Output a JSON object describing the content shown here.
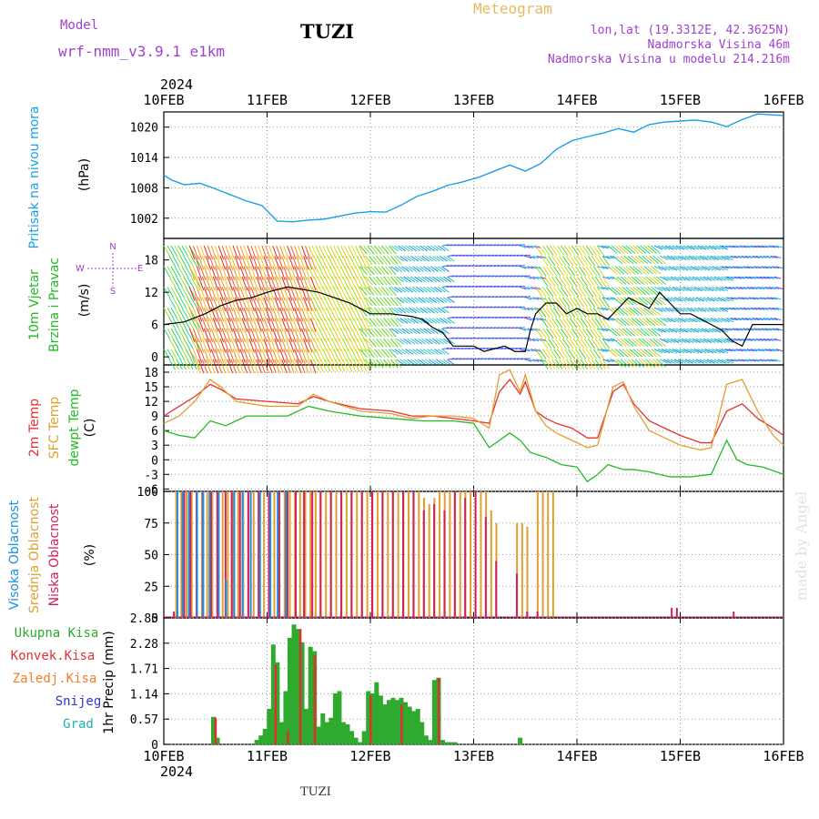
{
  "header": {
    "model_label": "Model",
    "model_name": "wrf-nmm_v3.9.1 e1km",
    "station": "TUZI",
    "title": "Meteogram",
    "lonlat": "lon,lat (19.3312E, 42.3625N)",
    "elevation": "Nadmorska Visina 46m",
    "model_elevation": "Nadmorska Visina u modelu 214.216m",
    "footer_station": "TUZI",
    "watermark": "made by Angel"
  },
  "colors": {
    "pressure": "#1aa0e6",
    "temp2m": "#e83030",
    "sfc": "#e0a030",
    "dew": "#22bb22",
    "high_cloud": "#2090e0",
    "mid_cloud": "#e0a030",
    "low_cloud": "#d02060",
    "total_precip": "#2eaa2e",
    "conv_precip": "#e03030",
    "frozen": "#f07d28",
    "snow": "#3333cc",
    "hail": "#20b0b0",
    "purple": "#a040d0"
  },
  "chart_data": [
    {
      "type": "line",
      "title": "Pritisak na nivou mora",
      "ylabel": "(hPa)",
      "x_tick_labels": [
        "10FEB",
        "11FEB",
        "12FEB",
        "13FEB",
        "14FEB",
        "15FEB",
        "16FEB"
      ],
      "year_label": "2024",
      "x_range_days": [
        0,
        6
      ],
      "yticks": [
        1002,
        1008,
        1014,
        1020
      ],
      "ylim": [
        998,
        1023
      ],
      "series": [
        {
          "values_x": [
            0,
            0.08,
            0.2,
            0.35,
            0.5,
            0.65,
            0.8,
            0.95,
            1.1,
            1.25,
            1.4,
            1.55,
            1.7,
            1.85,
            2.0,
            2.15,
            2.3,
            2.45,
            2.6,
            2.75,
            2.9,
            3.05,
            3.2,
            3.35,
            3.5,
            3.65,
            3.8,
            3.95,
            4.1,
            4.25,
            4.4,
            4.55,
            4.7,
            4.85,
            5.0,
            5.15,
            5.3,
            5.45,
            5.6,
            5.75,
            5.9,
            6.0
          ],
          "values": [
            1010.5,
            1009.5,
            1008.6,
            1008.9,
            1007.8,
            1006.6,
            1005.4,
            1004.5,
            1001.4,
            1001.3,
            1001.6,
            1001.8,
            1002.4,
            1003.0,
            1003.3,
            1003.2,
            1004.6,
            1006.3,
            1007.3,
            1008.5,
            1009.2,
            1010.1,
            1011.3,
            1012.5,
            1011.3,
            1012.8,
            1015.6,
            1017.3,
            1018.1,
            1018.8,
            1019.7,
            1019.0,
            1020.5,
            1021.0,
            1021.2,
            1021.4,
            1021.0,
            1020.1,
            1021.5,
            1022.6,
            1022.4,
            1022.3
          ]
        }
      ]
    },
    {
      "type": "line",
      "title": "10m Vjetar Brzina i Pravac",
      "ylabel": "(m/s)",
      "compass_top": "N",
      "compass_left": "W",
      "compass_right": "E",
      "compass_bottom": "S",
      "yticks": [
        0,
        6,
        12,
        18
      ],
      "ylim": [
        -1.5,
        22
      ],
      "series": [
        {
          "values_x": [
            0,
            0.2,
            0.4,
            0.55,
            0.7,
            0.85,
            1.0,
            1.1,
            1.2,
            1.35,
            1.5,
            1.65,
            1.8,
            2.0,
            2.2,
            2.4,
            2.5,
            2.6,
            2.7,
            2.8,
            2.9,
            3.0,
            3.1,
            3.2,
            3.3,
            3.4,
            3.5,
            3.55,
            3.6,
            3.7,
            3.8,
            3.9,
            4.0,
            4.1,
            4.2,
            4.3,
            4.4,
            4.5,
            4.6,
            4.7,
            4.8,
            4.9,
            5.0,
            5.1,
            5.2,
            5.3,
            5.4,
            5.5,
            5.6,
            5.7,
            5.8,
            5.9,
            6.0
          ],
          "values": [
            6,
            6.5,
            8,
            9.5,
            10.5,
            11,
            12,
            12.5,
            13,
            12.5,
            12,
            11,
            10,
            8,
            8,
            7.5,
            7,
            5.5,
            4.5,
            2,
            2,
            2,
            1,
            1.5,
            2,
            1,
            1,
            5,
            8,
            10,
            10,
            8,
            9,
            8,
            8,
            7,
            9,
            11,
            10,
            9,
            12,
            10,
            8,
            8,
            7,
            6,
            5,
            3,
            2,
            6,
            6,
            6,
            6
          ]
        }
      ]
    },
    {
      "type": "line",
      "title": "2m Temp / SFC Temp / dewpt Temp",
      "ylabel": "(C)",
      "yticks": [
        -6,
        -3,
        0,
        3,
        6,
        9,
        12,
        15,
        18
      ],
      "ylim": [
        -6.5,
        19.5
      ],
      "series": [
        {
          "name": "2m Temp",
          "values_x": [
            0,
            0.15,
            0.3,
            0.45,
            0.55,
            0.7,
            1.0,
            1.3,
            1.45,
            1.6,
            1.9,
            2.2,
            2.4,
            2.6,
            2.8,
            3.0,
            3.15,
            3.25,
            3.35,
            3.45,
            3.5,
            3.6,
            3.7,
            3.8,
            3.95,
            4.1,
            4.2,
            4.35,
            4.45,
            4.55,
            4.7,
            4.85,
            5.0,
            5.2,
            5.3,
            5.45,
            5.6,
            5.75,
            5.9,
            6.0
          ],
          "values": [
            9,
            11,
            13,
            15.5,
            14.5,
            12.5,
            12,
            11.5,
            13,
            12,
            10.5,
            10,
            9,
            9,
            8.5,
            8,
            7.5,
            14,
            16.5,
            13.5,
            16,
            10,
            8.5,
            7.5,
            6.5,
            4.5,
            4.5,
            14,
            15.5,
            11.5,
            8,
            6.5,
            5,
            3.5,
            3.5,
            10,
            11.5,
            8.5,
            6.5,
            5
          ]
        },
        {
          "name": "SFC Temp",
          "values_x": [
            0,
            0.15,
            0.3,
            0.45,
            0.55,
            0.7,
            1.0,
            1.3,
            1.45,
            1.6,
            1.9,
            2.2,
            2.4,
            2.6,
            2.8,
            3.0,
            3.15,
            3.25,
            3.35,
            3.45,
            3.5,
            3.6,
            3.7,
            3.8,
            3.95,
            4.1,
            4.2,
            4.35,
            4.45,
            4.55,
            4.7,
            4.85,
            5.0,
            5.2,
            5.3,
            5.45,
            5.6,
            5.75,
            5.9,
            6.0
          ],
          "values": [
            7.5,
            9,
            12,
            16.5,
            15,
            12,
            11,
            11,
            13.5,
            12,
            10,
            9.5,
            8.5,
            9,
            9,
            8.5,
            6.5,
            17.5,
            18.5,
            14,
            17.5,
            10,
            7,
            5.5,
            4,
            2.5,
            3,
            15,
            16,
            11,
            6,
            4.5,
            3,
            2,
            2.5,
            15.5,
            16.5,
            10,
            5,
            3
          ]
        },
        {
          "name": "dewpt Temp",
          "values_x": [
            0,
            0.15,
            0.3,
            0.45,
            0.6,
            0.8,
            1.0,
            1.2,
            1.4,
            1.6,
            1.9,
            2.2,
            2.5,
            2.8,
            3.0,
            3.15,
            3.25,
            3.35,
            3.45,
            3.55,
            3.7,
            3.85,
            4.0,
            4.1,
            4.2,
            4.3,
            4.45,
            4.55,
            4.7,
            4.9,
            5.1,
            5.3,
            5.45,
            5.55,
            5.65,
            5.8,
            6.0
          ],
          "values": [
            6,
            5,
            4.5,
            8,
            7,
            9,
            9,
            9,
            11,
            10,
            9,
            8.5,
            8,
            8,
            7.5,
            2.5,
            4,
            5.5,
            4,
            1.5,
            0.5,
            -1,
            -1.5,
            -4.5,
            -3,
            -1,
            -2,
            -2,
            -2.5,
            -3.5,
            -3.5,
            -3,
            4,
            0,
            -1,
            -1.5,
            -3
          ]
        }
      ]
    },
    {
      "type": "bar",
      "title": "Visoka Oblacnost / Srednja Oblacnost / Niska Oblacnost",
      "ylabel": "(%)",
      "yticks": [
        0,
        25,
        50,
        75,
        100
      ],
      "ylim": [
        0,
        100
      ],
      "note": "Cloud cover % from 10FEB to ~13.8FEB, mostly 100% mid-level cloud",
      "series": [
        {
          "name": "Srednja Oblacnost",
          "x": [
            0.12,
            0.17,
            0.22,
            0.27,
            0.32,
            0.37,
            0.42,
            0.47,
            0.52,
            0.57,
            0.62,
            0.67,
            0.72,
            0.77,
            0.82,
            0.87,
            0.92,
            0.97,
            1.02,
            1.07,
            1.12,
            1.17,
            1.22,
            1.27,
            1.32,
            1.37,
            1.42,
            1.47,
            1.52,
            1.57,
            1.62,
            1.67,
            1.72,
            1.77,
            1.82,
            1.87,
            1.92,
            1.97,
            2.02,
            2.07,
            2.12,
            2.17,
            2.22,
            2.27,
            2.32,
            2.37,
            2.42,
            2.47,
            2.52,
            2.57,
            2.62,
            2.67,
            2.72,
            2.77,
            2.82,
            2.87,
            2.92,
            2.97,
            3.02,
            3.07,
            3.12,
            3.17,
            3.22,
            3.42,
            3.47,
            3.52,
            3.62,
            3.67,
            3.72,
            3.77
          ],
          "values": [
            100,
            100,
            100,
            100,
            100,
            100,
            100,
            100,
            100,
            100,
            100,
            100,
            100,
            100,
            100,
            100,
            100,
            100,
            100,
            100,
            100,
            100,
            100,
            100,
            100,
            100,
            100,
            100,
            100,
            100,
            100,
            100,
            100,
            100,
            100,
            100,
            100,
            100,
            100,
            100,
            100,
            100,
            100,
            100,
            100,
            100,
            100,
            100,
            95,
            90,
            95,
            100,
            100,
            100,
            100,
            100,
            100,
            100,
            100,
            100,
            100,
            85,
            75,
            75,
            75,
            72,
            100,
            100,
            100,
            100
          ]
        },
        {
          "name": "Niska Oblacnost",
          "x": [
            0.08,
            0.18,
            0.24,
            0.3,
            0.36,
            0.44,
            0.5,
            0.58,
            0.64,
            0.72,
            0.8,
            0.9,
            1.0,
            1.1,
            1.18,
            1.26,
            1.34,
            1.42,
            1.5,
            1.6,
            1.7,
            1.8,
            1.9,
            2.0,
            2.1,
            2.2,
            2.3,
            2.4,
            2.5,
            2.6,
            2.7,
            2.8,
            2.9,
            3.0,
            3.1,
            3.2,
            3.4,
            3.5,
            3.6,
            4.9,
            4.95,
            5.5
          ],
          "values": [
            5,
            100,
            100,
            100,
            100,
            100,
            100,
            100,
            100,
            100,
            100,
            100,
            100,
            100,
            100,
            100,
            100,
            100,
            100,
            100,
            100,
            100,
            100,
            100,
            100,
            100,
            100,
            100,
            85,
            90,
            85,
            100,
            95,
            100,
            80,
            45,
            35,
            5,
            5,
            8,
            8,
            5
          ]
        },
        {
          "name": "Visoka Oblacnost",
          "x": [
            0.15,
            0.2,
            0.26,
            0.34,
            0.4,
            0.46,
            0.55,
            0.62,
            0.7,
            0.78,
            0.86,
            0.95,
            1.05,
            1.12,
            1.2
          ],
          "values": [
            100,
            100,
            100,
            100,
            100,
            100,
            100,
            30,
            100,
            100,
            100,
            100,
            100,
            100,
            100
          ]
        }
      ]
    },
    {
      "type": "bar",
      "title": "1hr Precip",
      "ylabel": "(mm)",
      "yticks": [
        0,
        0.57,
        1.14,
        1.71,
        2.28,
        2.85
      ],
      "ylim": [
        0,
        2.85
      ],
      "legend": [
        "Ukupna Kisa",
        "Konvek.Kisa",
        "Zaledj.Kisa",
        "Snijeg",
        "Grad"
      ],
      "series": [
        {
          "name": "Ukupna Kisa",
          "x": [
            0.48,
            0.52,
            0.9,
            0.94,
            0.98,
            1.02,
            1.06,
            1.1,
            1.14,
            1.18,
            1.22,
            1.26,
            1.3,
            1.34,
            1.38,
            1.42,
            1.46,
            1.5,
            1.54,
            1.58,
            1.62,
            1.66,
            1.7,
            1.74,
            1.78,
            1.82,
            1.86,
            1.9,
            1.94,
            1.98,
            2.02,
            2.06,
            2.1,
            2.14,
            2.18,
            2.22,
            2.26,
            2.3,
            2.34,
            2.38,
            2.42,
            2.46,
            2.5,
            2.54,
            2.58,
            2.62,
            2.66,
            2.7,
            2.74,
            2.78,
            2.82,
            3.45
          ],
          "values": [
            0.62,
            0.15,
            0.1,
            0.2,
            0.35,
            0.8,
            2.25,
            1.85,
            0.5,
            1.2,
            2.4,
            2.7,
            2.6,
            2.3,
            0.8,
            2.2,
            2.1,
            0.4,
            0.7,
            0.5,
            0.6,
            1.15,
            1.2,
            0.5,
            0.45,
            0.3,
            0.15,
            0.05,
            0.3,
            1.2,
            1.15,
            1.4,
            1.1,
            0.9,
            1.0,
            1.05,
            1.0,
            1.05,
            0.95,
            0.85,
            0.75,
            0.8,
            0.5,
            0.2,
            0.1,
            1.45,
            1.5,
            0.1,
            0.05,
            0.05,
            0.05,
            0.15
          ]
        },
        {
          "name": "Konvek.Kisa",
          "x": [
            0.5,
            1.08,
            1.2,
            1.32,
            1.46,
            2.0,
            2.3,
            2.66
          ],
          "values": [
            0.6,
            1.8,
            0.3,
            2.6,
            2.0,
            1.1,
            0.9,
            1.5
          ]
        }
      ]
    }
  ]
}
